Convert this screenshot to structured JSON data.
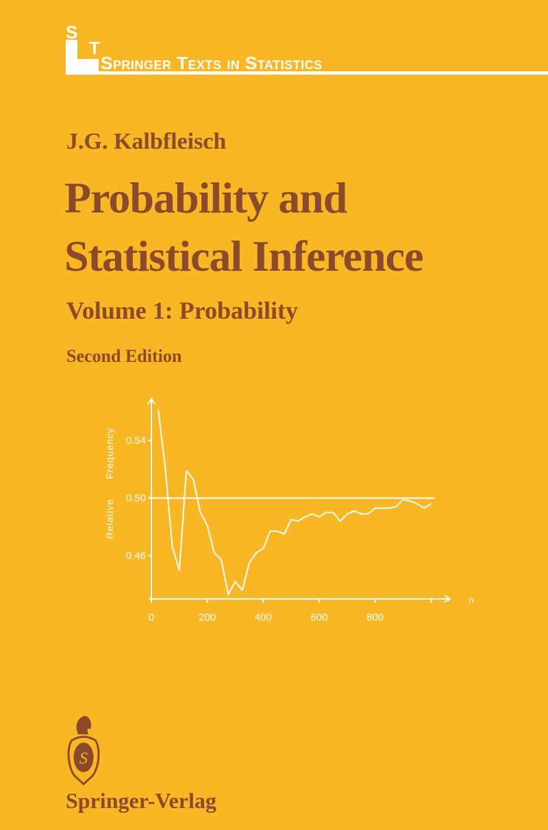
{
  "series": {
    "letter_s": "S",
    "letter_t": "T",
    "name": "Springer Texts in Statistics"
  },
  "author": "J.G. Kalbfleisch",
  "title_line1": "Probability and",
  "title_line2": "Statistical Inference",
  "volume": "Volume 1: Probability",
  "edition": "Second Edition",
  "publisher": "Springer-Verlag",
  "colors": {
    "background": "#F9B723",
    "text": "#8B4A2B",
    "chart": "#FFFFFF"
  },
  "chart_data": {
    "type": "line",
    "xlabel": "n",
    "ylabel": "Relative Frequency",
    "xlim": [
      0,
      1050
    ],
    "ylim": [
      0.43,
      0.57
    ],
    "x_ticks": [
      0,
      200,
      400,
      600,
      800,
      1000
    ],
    "x_tick_labels": [
      "0",
      "200",
      "400",
      "600",
      "800",
      ""
    ],
    "y_ticks": [
      0.46,
      0.5,
      0.54
    ],
    "y_tick_labels": [
      "0.46",
      "0.50",
      "0.54"
    ],
    "reference_line": 0.5,
    "grid": false,
    "x": [
      25,
      50,
      75,
      100,
      125,
      150,
      175,
      200,
      225,
      250,
      275,
      300,
      325,
      350,
      375,
      400,
      425,
      450,
      475,
      500,
      525,
      550,
      575,
      600,
      625,
      650,
      675,
      700,
      725,
      750,
      775,
      800,
      825,
      850,
      875,
      900,
      925,
      950,
      975,
      1000
    ],
    "y": [
      0.561,
      0.52,
      0.466,
      0.45,
      0.519,
      0.513,
      0.49,
      0.481,
      0.462,
      0.457,
      0.433,
      0.442,
      0.436,
      0.455,
      0.462,
      0.465,
      0.477,
      0.477,
      0.475,
      0.485,
      0.484,
      0.487,
      0.489,
      0.487,
      0.49,
      0.49,
      0.484,
      0.489,
      0.491,
      0.489,
      0.489,
      0.493,
      0.493,
      0.493,
      0.494,
      0.499,
      0.498,
      0.496,
      0.493,
      0.496
    ]
  }
}
